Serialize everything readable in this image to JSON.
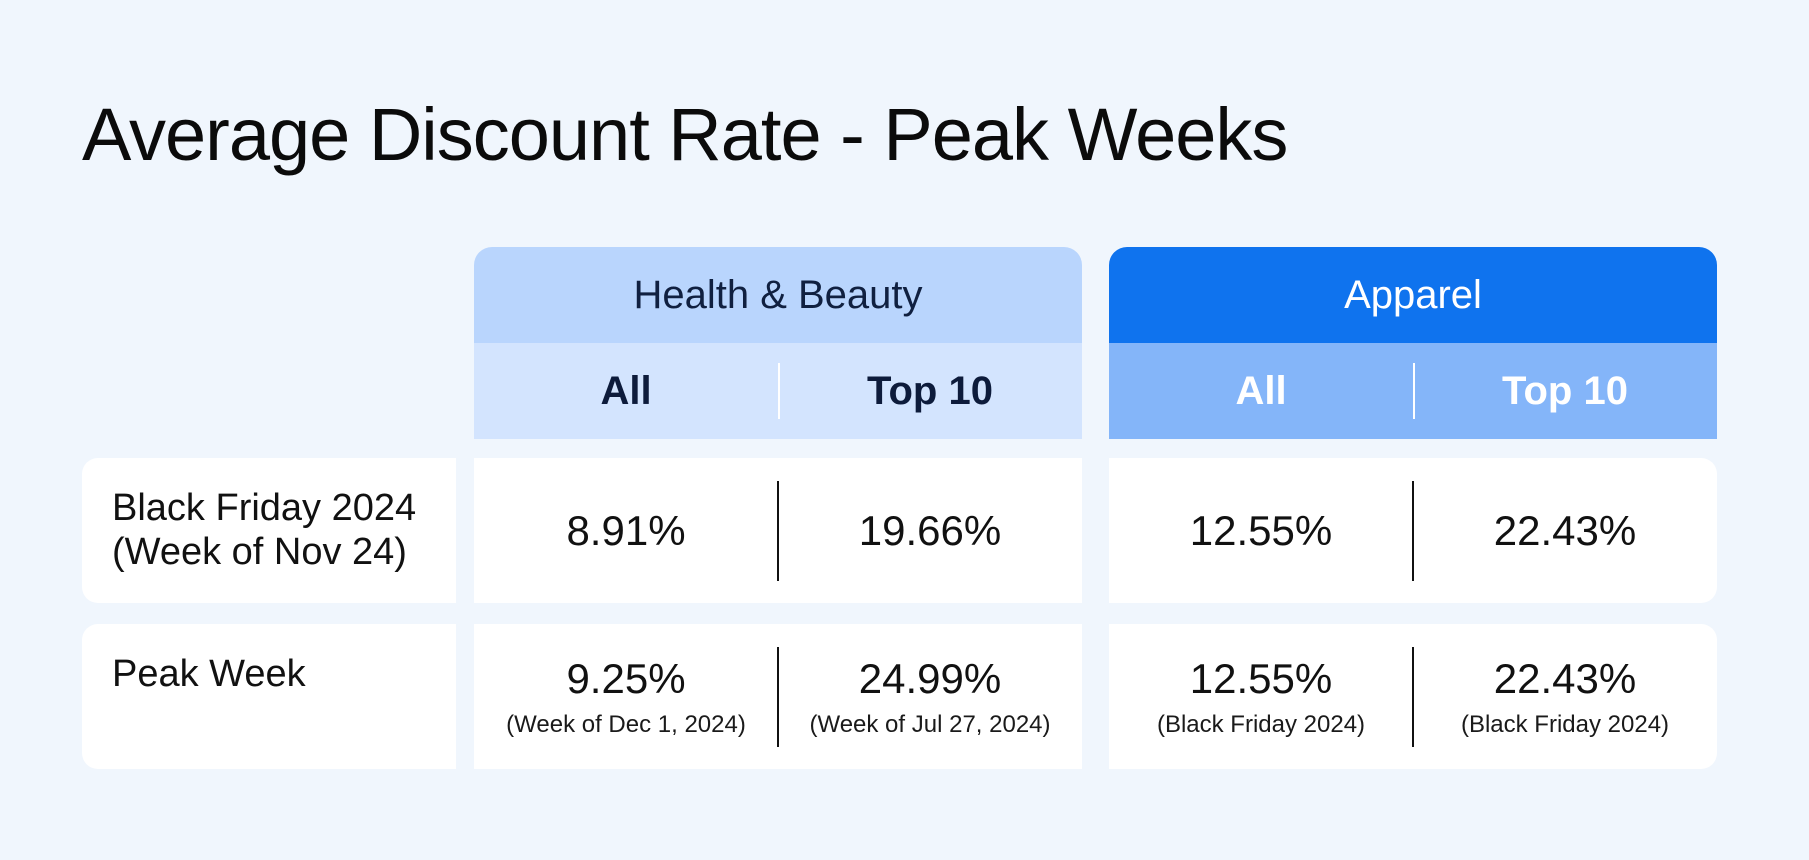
{
  "title": "Average Discount Rate - Peak Weeks",
  "colors": {
    "page_background": "#f0f6fd",
    "health_beauty_header": "#b9d5fd",
    "health_beauty_subheader": "#d3e4fe",
    "apparel_header": "#0f73ee",
    "apparel_subheader": "#84b5f9",
    "cell_background": "#ffffff"
  },
  "chart_data": {
    "type": "table",
    "title": "Average Discount Rate - Peak Weeks",
    "groups": [
      {
        "name": "Health & Beauty",
        "columns": [
          "All",
          "Top 10"
        ]
      },
      {
        "name": "Apparel",
        "columns": [
          "All",
          "Top 10"
        ]
      }
    ],
    "rows": [
      {
        "label_line1": "Black Friday 2024",
        "label_line2": "(Week of Nov 24)",
        "cells": [
          {
            "value": "8.91%",
            "note": ""
          },
          {
            "value": "19.66%",
            "note": ""
          },
          {
            "value": "12.55%",
            "note": ""
          },
          {
            "value": "22.43%",
            "note": ""
          }
        ]
      },
      {
        "label_line1": "Peak Week",
        "label_line2": "",
        "cells": [
          {
            "value": "9.25%",
            "note": "(Week of Dec 1, 2024)"
          },
          {
            "value": "24.99%",
            "note": "(Week of Jul 27, 2024)"
          },
          {
            "value": "12.55%",
            "note": "(Black Friday 2024)"
          },
          {
            "value": "22.43%",
            "note": "(Black Friday 2024)"
          }
        ]
      }
    ]
  }
}
